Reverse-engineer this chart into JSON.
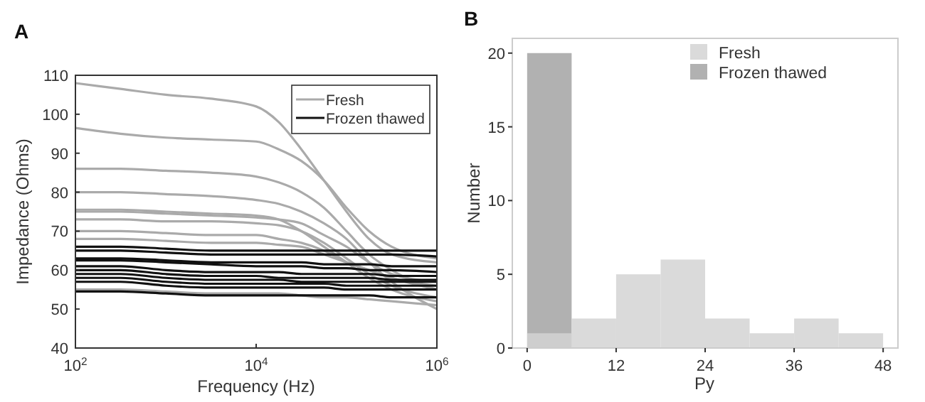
{
  "chart_data": [
    {
      "type": "line",
      "title": "A",
      "xlabel": "Frequency (Hz)",
      "ylabel": "Impedance (Ohms)",
      "log": "x",
      "xlim": [
        100,
        1000000
      ],
      "ylim": [
        40,
        110
      ],
      "xticks": [
        {
          "value": 100,
          "label": "10$^{2}$"
        },
        {
          "value": 10000,
          "label": "10$^{4}$"
        },
        {
          "value": 1000000,
          "label": "10$^{6}$"
        }
      ],
      "yticks": [
        40,
        50,
        60,
        70,
        80,
        90,
        100,
        110
      ],
      "grid": false,
      "legend": "top right",
      "marker": "none",
      "line_style": "solid",
      "x": [
        100,
        316,
        1000,
        3162,
        10000,
        17783,
        31623,
        56234,
        100000,
        177828,
        316228,
        1000000
      ],
      "series": [
        {
          "name": "Fresh",
          "color": "#aaaaaa",
          "values": [
            108,
            106.5,
            105,
            104,
            102,
            98,
            91,
            83,
            75,
            68,
            64,
            62
          ]
        },
        {
          "color": "#aaaaaa",
          "values": [
            96.5,
            95,
            94,
            93.5,
            93,
            91,
            88,
            83,
            76,
            70,
            66,
            63
          ]
        },
        {
          "color": "#aaaaaa",
          "values": [
            86,
            86,
            85.5,
            85,
            84,
            82.5,
            80,
            76,
            70,
            64,
            60,
            55
          ]
        },
        {
          "color": "#aaaaaa",
          "values": [
            80,
            80,
            79.5,
            79,
            78,
            77,
            75,
            72,
            68,
            62,
            57,
            50
          ]
        },
        {
          "color": "#aaaaaa",
          "values": [
            75.5,
            75.5,
            75,
            74.5,
            74,
            73,
            70,
            66,
            62,
            58,
            55,
            52
          ]
        },
        {
          "color": "#aaaaaa",
          "values": [
            75,
            75,
            74.5,
            74,
            73.5,
            73,
            72,
            69,
            66,
            62,
            59,
            57
          ]
        },
        {
          "color": "#aaaaaa",
          "values": [
            73,
            73,
            72.5,
            72.5,
            72,
            71.5,
            70,
            67,
            63,
            59,
            56,
            53
          ]
        },
        {
          "color": "#aaaaaa",
          "values": [
            70,
            70,
            69.5,
            69,
            69,
            68,
            67,
            65,
            62,
            60,
            58,
            55
          ]
        },
        {
          "color": "#aaaaaa",
          "values": [
            68,
            68,
            67.5,
            67,
            67,
            66.5,
            66,
            64,
            62,
            60,
            58,
            56
          ]
        },
        {
          "color": "#aaaaaa",
          "values": [
            55,
            55,
            54.5,
            54,
            54,
            54,
            53.5,
            53,
            53,
            52.5,
            52,
            51
          ]
        },
        {
          "name": "Frozen thawed",
          "color": "#111111",
          "values": [
            66,
            66,
            65.5,
            65,
            65,
            65,
            65,
            65,
            65,
            65,
            65,
            65
          ]
        },
        {
          "color": "#111111",
          "values": [
            65,
            65,
            64.5,
            64,
            64,
            64,
            64,
            64,
            64,
            64,
            64,
            63.5
          ]
        },
        {
          "color": "#111111",
          "values": [
            63,
            63,
            62.5,
            62,
            62,
            62,
            62,
            61.5,
            61.5,
            61.5,
            61,
            61
          ]
        },
        {
          "color": "#111111",
          "values": [
            62.5,
            62.5,
            62,
            61.5,
            61,
            61,
            61,
            60.5,
            60.5,
            60,
            60,
            59.5
          ]
        },
        {
          "color": "#111111",
          "values": [
            61,
            61,
            60,
            59.5,
            59.5,
            59.5,
            59,
            59,
            59,
            59,
            58.5,
            58.5
          ]
        },
        {
          "color": "#111111",
          "values": [
            60,
            60,
            59,
            58.5,
            58.5,
            58,
            58,
            58,
            58,
            58,
            57.5,
            57.5
          ]
        },
        {
          "color": "#111111",
          "values": [
            59,
            59,
            58,
            57.5,
            57.5,
            57.5,
            57,
            57,
            57,
            57,
            57,
            57
          ]
        },
        {
          "color": "#111111",
          "values": [
            58,
            58,
            57,
            56.5,
            56.5,
            56.5,
            56.5,
            56.5,
            56,
            56,
            56,
            56
          ]
        },
        {
          "color": "#111111",
          "values": [
            57,
            57,
            56,
            55.5,
            55.5,
            55.5,
            55.5,
            55.5,
            55,
            55,
            55,
            55
          ]
        },
        {
          "color": "#111111",
          "values": [
            54.5,
            54.5,
            54,
            53.5,
            53.5,
            53.5,
            53.5,
            53.5,
            53.5,
            53.5,
            53,
            53
          ]
        }
      ]
    },
    {
      "type": "histogram",
      "title": "B",
      "xlabel": "Py",
      "ylabel": "Number",
      "xlim": [
        -2,
        50
      ],
      "ylim": [
        0,
        21
      ],
      "xticks": [
        0,
        12,
        24,
        36,
        48
      ],
      "yticks": [
        0,
        5,
        10,
        15,
        20
      ],
      "grid": false,
      "legend": "top",
      "bins": [
        0,
        6,
        12,
        18,
        24,
        30,
        36,
        42,
        48
      ],
      "series": [
        {
          "name": "Fresh",
          "color": "#d3d3d3",
          "values": [
            1,
            2,
            5,
            6,
            2,
            1,
            2,
            1
          ]
        },
        {
          "name": "Frozen thawed",
          "color": "#a3a3a3",
          "values": [
            20,
            0,
            0,
            0,
            0,
            0,
            0,
            0
          ]
        }
      ]
    }
  ]
}
